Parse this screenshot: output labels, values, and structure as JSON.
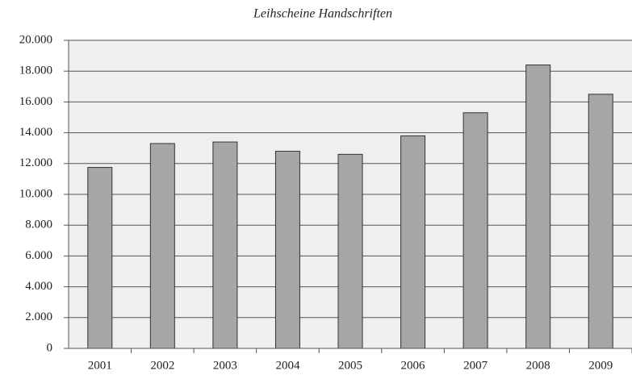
{
  "chart_data": {
    "type": "bar",
    "title": "Leihscheine Handschriften",
    "categories": [
      "2001",
      "2002",
      "2003",
      "2004",
      "2005",
      "2006",
      "2007",
      "2008",
      "2009"
    ],
    "values": [
      11750,
      13300,
      13400,
      12800,
      12600,
      13800,
      15300,
      18400,
      16500
    ],
    "color": "#a6a6a6",
    "ylim": [
      0,
      20000
    ],
    "yticks": [
      0,
      {
        "value": 2000,
        "label": "2.000"
      },
      {
        "value": 4000,
        "label": "4.000"
      },
      {
        "value": 6000,
        "label": "6.000"
      },
      {
        "value": 8000,
        "label": "8.000"
      },
      {
        "value": 10000,
        "label": "10.000"
      },
      {
        "value": 12000,
        "label": "12.000"
      },
      {
        "value": 14000,
        "label": "14.000"
      },
      {
        "value": 16000,
        "label": "16.000"
      },
      {
        "value": 18000,
        "label": "18.000"
      },
      {
        "value": 20000,
        "label": "20.000"
      }
    ],
    "grid": true
  }
}
